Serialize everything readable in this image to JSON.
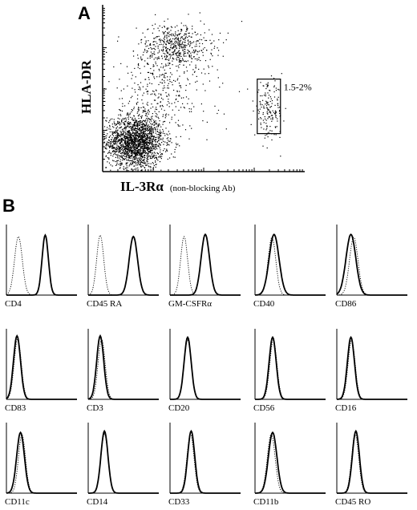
{
  "panel_a": {
    "letter": "A",
    "y_axis_label": "HLA-DR",
    "x_axis_label": "IL-3Rα",
    "x_axis_note": "(non-blocking Ab)",
    "gate_label": "1.5-2%"
  },
  "panel_b": {
    "letter": "B"
  },
  "chart_data": [
    {
      "type": "scatter",
      "title": "",
      "xlabel": "IL-3Rα (non-blocking Ab)",
      "ylabel": "HLA-DR",
      "populations": [
        {
          "cx": 0.16,
          "cy": 0.18,
          "sx": 0.07,
          "sy": 0.08,
          "n": 1900
        },
        {
          "cx": 0.36,
          "cy": 0.76,
          "sx": 0.09,
          "sy": 0.07,
          "n": 520
        },
        {
          "cx": 0.28,
          "cy": 0.46,
          "sx": 0.13,
          "sy": 0.15,
          "n": 380
        },
        {
          "cx": 0.82,
          "cy": 0.37,
          "sx": 0.035,
          "sy": 0.08,
          "n": 170
        }
      ],
      "gate": {
        "x": [
          0.765,
          0.88
        ],
        "y": [
          0.23,
          0.56
        ],
        "label": "1.5-2%"
      }
    },
    {
      "type": "line",
      "title": "",
      "histograms": [
        {
          "label": "CD4",
          "solid": {
            "mu": 0.55,
            "sd": 0.045,
            "h": 0.85
          },
          "dotted": {
            "mu": 0.17,
            "sd": 0.055,
            "h": 0.83
          }
        },
        {
          "label": "CD45 RA",
          "solid": {
            "mu": 0.64,
            "sd": 0.06,
            "h": 0.83
          },
          "dotted": {
            "mu": 0.17,
            "sd": 0.05,
            "h": 0.85
          }
        },
        {
          "label": "GM-CSFRα",
          "solid": {
            "mu": 0.5,
            "sd": 0.06,
            "h": 0.86
          },
          "dotted": {
            "mu": 0.2,
            "sd": 0.05,
            "h": 0.83
          }
        },
        {
          "label": "CD40",
          "solid": {
            "mu": 0.27,
            "sd": 0.07,
            "h": 0.86
          },
          "dotted": {
            "mu": 0.24,
            "sd": 0.055,
            "h": 0.82
          }
        },
        {
          "label": "CD86",
          "solid": {
            "mu": 0.2,
            "sd": 0.07,
            "h": 0.86
          },
          "dotted": {
            "mu": 0.24,
            "sd": 0.06,
            "h": 0.82
          }
        },
        {
          "label": "CD83",
          "solid": {
            "mu": 0.15,
            "sd": 0.05,
            "h": 0.9
          },
          "dotted": {
            "mu": 0.16,
            "sd": 0.05,
            "h": 0.86
          }
        },
        {
          "label": "CD3",
          "solid": {
            "mu": 0.17,
            "sd": 0.05,
            "h": 0.9
          },
          "dotted": {
            "mu": 0.19,
            "sd": 0.05,
            "h": 0.85
          }
        },
        {
          "label": "CD20",
          "solid": {
            "mu": 0.25,
            "sd": 0.05,
            "h": 0.88
          },
          "dotted": {
            "mu": 0.25,
            "sd": 0.05,
            "h": 0.84
          }
        },
        {
          "label": "CD56",
          "solid": {
            "mu": 0.25,
            "sd": 0.05,
            "h": 0.88
          },
          "dotted": {
            "mu": 0.26,
            "sd": 0.05,
            "h": 0.84
          }
        },
        {
          "label": "CD16",
          "solid": {
            "mu": 0.2,
            "sd": 0.05,
            "h": 0.88
          },
          "dotted": {
            "mu": 0.21,
            "sd": 0.05,
            "h": 0.84
          }
        },
        {
          "label": "CD11c",
          "solid": {
            "mu": 0.2,
            "sd": 0.055,
            "h": 0.86
          },
          "dotted": {
            "mu": 0.22,
            "sd": 0.05,
            "h": 0.83
          }
        },
        {
          "label": "CD14",
          "solid": {
            "mu": 0.23,
            "sd": 0.05,
            "h": 0.88
          },
          "dotted": {
            "mu": 0.23,
            "sd": 0.05,
            "h": 0.84
          }
        },
        {
          "label": "CD33",
          "solid": {
            "mu": 0.3,
            "sd": 0.05,
            "h": 0.88
          },
          "dotted": {
            "mu": 0.29,
            "sd": 0.05,
            "h": 0.84
          }
        },
        {
          "label": "CD11b",
          "solid": {
            "mu": 0.25,
            "sd": 0.06,
            "h": 0.86
          },
          "dotted": {
            "mu": 0.23,
            "sd": 0.055,
            "h": 0.84
          }
        },
        {
          "label": "CD45 RO",
          "solid": {
            "mu": 0.27,
            "sd": 0.05,
            "h": 0.88
          },
          "dotted": {
            "mu": 0.26,
            "sd": 0.05,
            "h": 0.84
          }
        }
      ]
    }
  ]
}
